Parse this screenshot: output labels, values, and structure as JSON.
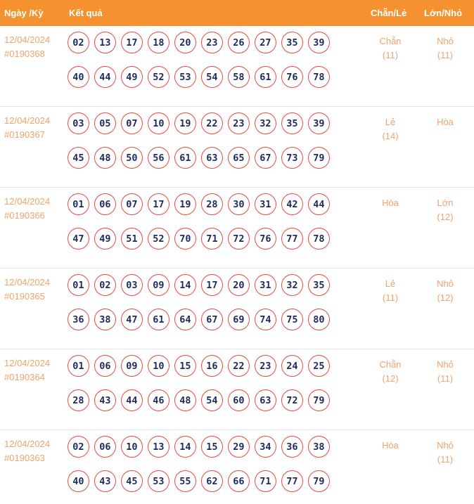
{
  "header": {
    "date_label": "Ngày /Kỳ",
    "result_label": "Kết quả",
    "even_odd_label": "Chẵn/Lẻ",
    "big_small_label": "Lớn/Nhỏ"
  },
  "rows": [
    {
      "date": "12/04/2024",
      "ky": "#0190368",
      "balls": [
        "02",
        "13",
        "17",
        "18",
        "20",
        "23",
        "26",
        "27",
        "35",
        "39",
        "40",
        "44",
        "49",
        "52",
        "53",
        "54",
        "58",
        "61",
        "76",
        "78"
      ],
      "even_odd": "Chẵn",
      "even_odd_count": "(11)",
      "big_small": "Nhỏ",
      "big_small_count": "(11)"
    },
    {
      "date": "12/04/2024",
      "ky": "#0190367",
      "balls": [
        "03",
        "05",
        "07",
        "10",
        "19",
        "22",
        "23",
        "32",
        "35",
        "39",
        "45",
        "48",
        "50",
        "56",
        "61",
        "63",
        "65",
        "67",
        "73",
        "79"
      ],
      "even_odd": "Lẻ",
      "even_odd_count": "(14)",
      "big_small": "Hòa",
      "big_small_count": ""
    },
    {
      "date": "12/04/2024",
      "ky": "#0190366",
      "balls": [
        "01",
        "06",
        "07",
        "17",
        "19",
        "28",
        "30",
        "31",
        "42",
        "44",
        "47",
        "49",
        "51",
        "52",
        "70",
        "71",
        "72",
        "76",
        "77",
        "78"
      ],
      "even_odd": "Hòa",
      "even_odd_count": "",
      "big_small": "Lớn",
      "big_small_count": "(12)"
    },
    {
      "date": "12/04/2024",
      "ky": "#0190365",
      "balls": [
        "01",
        "02",
        "03",
        "09",
        "14",
        "17",
        "20",
        "31",
        "32",
        "35",
        "36",
        "38",
        "47",
        "61",
        "64",
        "67",
        "69",
        "74",
        "75",
        "80"
      ],
      "even_odd": "Lẻ",
      "even_odd_count": "(11)",
      "big_small": "Nhỏ",
      "big_small_count": "(12)"
    },
    {
      "date": "12/04/2024",
      "ky": "#0190364",
      "balls": [
        "01",
        "06",
        "09",
        "10",
        "15",
        "16",
        "22",
        "23",
        "24",
        "25",
        "28",
        "43",
        "44",
        "46",
        "48",
        "54",
        "60",
        "63",
        "72",
        "79"
      ],
      "even_odd": "Chẵn",
      "even_odd_count": "(12)",
      "big_small": "Nhỏ",
      "big_small_count": "(11)"
    },
    {
      "date": "12/04/2024",
      "ky": "#0190363",
      "balls": [
        "02",
        "06",
        "10",
        "13",
        "14",
        "15",
        "29",
        "34",
        "36",
        "38",
        "40",
        "43",
        "45",
        "53",
        "55",
        "62",
        "66",
        "71",
        "77",
        "79"
      ],
      "even_odd": "Hòa",
      "even_odd_count": "",
      "big_small": "Nhỏ",
      "big_small_count": "(11)"
    }
  ],
  "colors": {
    "header_bg": "#f5922f",
    "accent_text": "#f0a36a",
    "ball_border": "#e84a3f",
    "ball_text": "#1f2a5a"
  }
}
